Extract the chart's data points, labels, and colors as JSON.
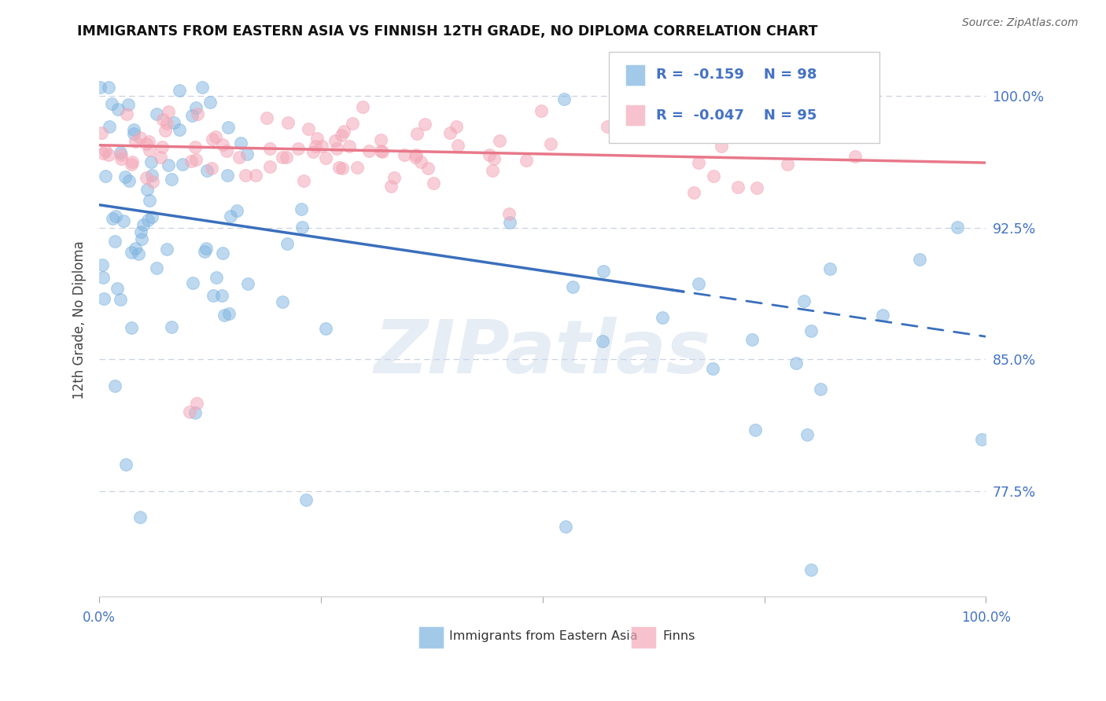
{
  "title": "IMMIGRANTS FROM EASTERN ASIA VS FINNISH 12TH GRADE, NO DIPLOMA CORRELATION CHART",
  "source": "Source: ZipAtlas.com",
  "ylabel": "12th Grade, No Diploma",
  "xlim": [
    0.0,
    1.0
  ],
  "ylim": [
    0.715,
    1.03
  ],
  "legend_blue_r": "-0.159",
  "legend_blue_n": "98",
  "legend_pink_r": "-0.047",
  "legend_pink_n": "95",
  "blue_color": "#7db3e0",
  "pink_color": "#f4a8b8",
  "blue_line_color": "#3a6fbc",
  "pink_line_color": "#e8788a",
  "blue_line_solid_end": 0.65,
  "blue_intercept": 0.938,
  "blue_slope": -0.075,
  "pink_intercept": 0.972,
  "pink_slope": -0.01,
  "ytick_vals": [
    0.775,
    0.85,
    0.925,
    1.0
  ],
  "ytick_labels": [
    "77.5%",
    "85.0%",
    "92.5%",
    "100.0%"
  ],
  "xtick_vals": [
    0.0,
    0.25,
    0.5,
    0.75,
    1.0
  ],
  "watermark": "ZIPatlas"
}
